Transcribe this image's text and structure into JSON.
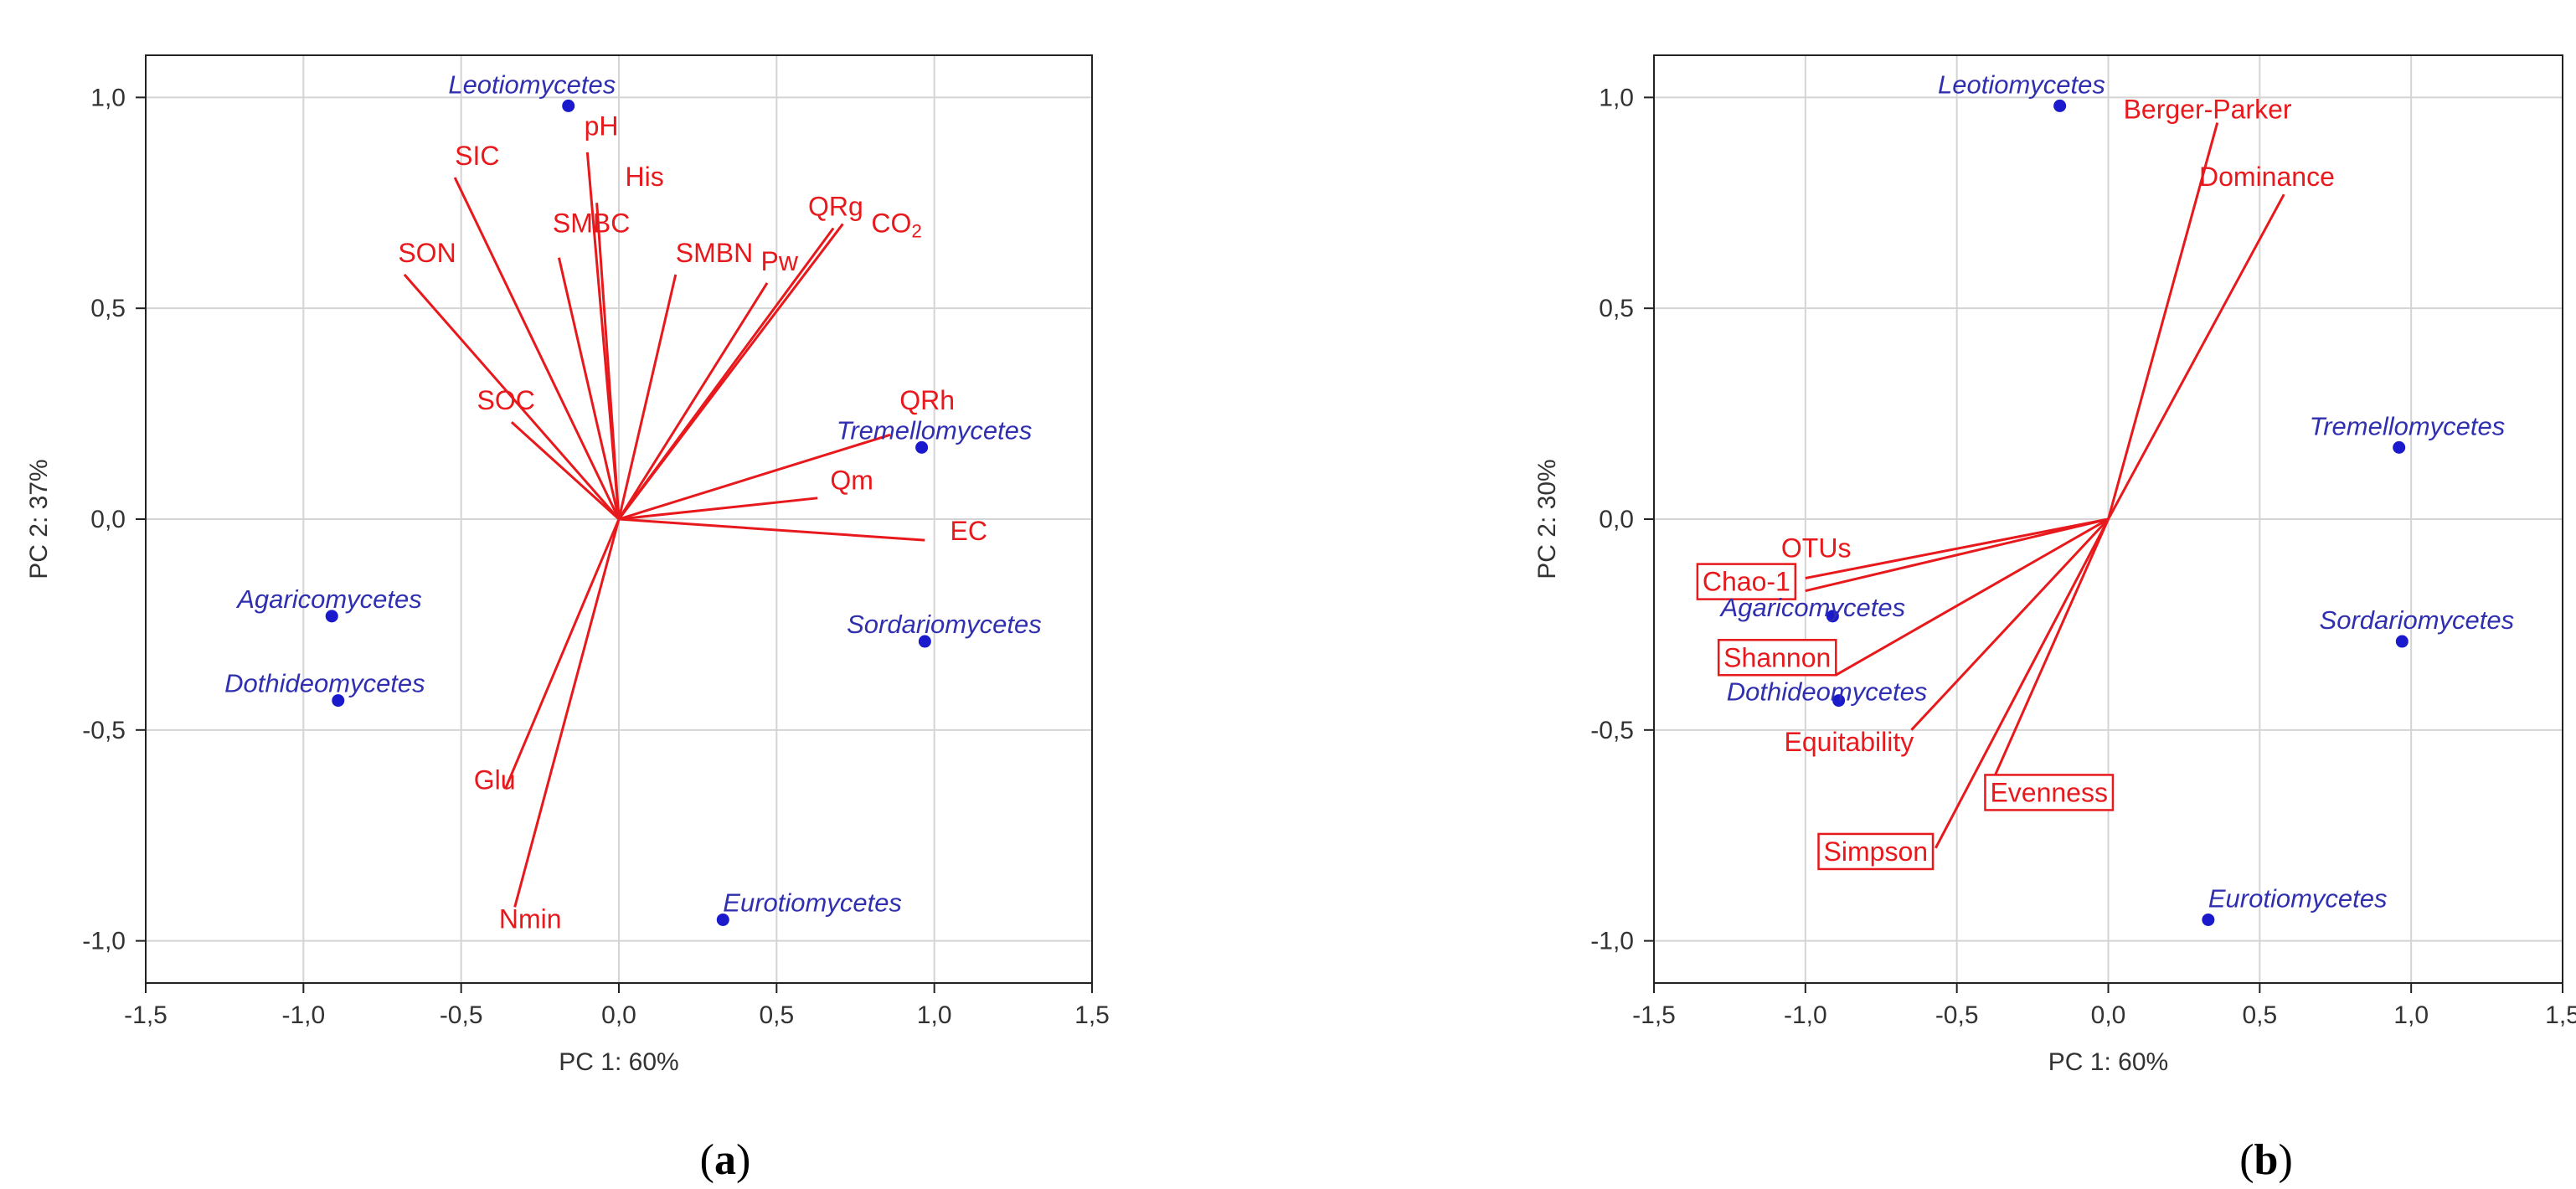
{
  "chart_data": [
    {
      "type": "scatter",
      "subtype": "pca-biplot",
      "panel_label": {
        "prefix": "(",
        "letter": "a",
        "suffix": ")"
      },
      "xlabel": "PC 1: 60%",
      "ylabel": "PC 2: 37%",
      "xlim": [
        -1.5,
        1.5
      ],
      "ylim": [
        -1.1,
        1.1
      ],
      "grid": true,
      "x_ticks": [
        -1.5,
        -1.0,
        -0.5,
        0.0,
        0.5,
        1.0,
        1.5
      ],
      "y_ticks": [
        -1.0,
        -0.5,
        0.0,
        0.5,
        1.0
      ],
      "x_tick_labels": [
        "-1,5",
        "-1,0",
        "-0,5",
        "0,0",
        "0,5",
        "1,0",
        "1,5"
      ],
      "y_tick_labels": [
        "-1,0",
        "-0,5",
        "0,0",
        "0,5",
        "1,0"
      ],
      "colors": {
        "points": "#1a1acc",
        "point_labels": "#2f2fb0",
        "vectors": "#e8191c",
        "grid": "#d4d4d4",
        "axes": "#222222"
      },
      "points": [
        {
          "label": "Leotiomycetes",
          "x": -0.16,
          "y": 0.98,
          "label_anchor": "end",
          "label_dx": 0.15,
          "label_dy": 0.03
        },
        {
          "label": "Tremellomycetes",
          "x": 0.96,
          "y": 0.17,
          "label_anchor": "end",
          "label_dx": 0.35,
          "label_dy": 0.02
        },
        {
          "label": "Sordariomycetes",
          "x": 0.97,
          "y": -0.29,
          "label_anchor": "end",
          "label_dx": 0.37,
          "label_dy": 0.02
        },
        {
          "label": "Agaricomycetes",
          "x": -0.91,
          "y": -0.23,
          "label_anchor": "start",
          "label_dx": -0.3,
          "label_dy": 0.02
        },
        {
          "label": "Dothideomycetes",
          "x": -0.89,
          "y": -0.43,
          "label_anchor": "start",
          "label_dx": -0.36,
          "label_dy": 0.02
        },
        {
          "label": "Eurotiomycetes",
          "x": 0.33,
          "y": -0.95,
          "label_anchor": "start",
          "label_dx": 0.0,
          "label_dy": 0.02
        }
      ],
      "vectors": [
        {
          "label": "pH",
          "x": -0.1,
          "y": 0.87,
          "lx": -0.11,
          "ly": 0.91,
          "boxed": false
        },
        {
          "label": "His",
          "x": -0.07,
          "y": 0.75,
          "lx": 0.02,
          "ly": 0.79,
          "boxed": false
        },
        {
          "label": "SIC",
          "x": -0.52,
          "y": 0.81,
          "lx": -0.52,
          "ly": 0.84,
          "boxed": false
        },
        {
          "label": "SMBC",
          "x": -0.19,
          "y": 0.62,
          "lx": -0.21,
          "ly": 0.68,
          "boxed": false
        },
        {
          "label": "SON",
          "x": -0.68,
          "y": 0.58,
          "lx": -0.7,
          "ly": 0.61,
          "boxed": false
        },
        {
          "label": "SMBN",
          "x": 0.18,
          "y": 0.58,
          "lx": 0.18,
          "ly": 0.61,
          "boxed": false
        },
        {
          "label": "QRg",
          "x": 0.68,
          "y": 0.69,
          "lx": 0.6,
          "ly": 0.72,
          "boxed": false
        },
        {
          "label": "CO2",
          "x": 0.71,
          "y": 0.7,
          "lx": 0.8,
          "ly": 0.68,
          "boxed": false
        },
        {
          "label": "Pw",
          "x": 0.47,
          "y": 0.56,
          "lx": 0.45,
          "ly": 0.59,
          "boxed": false
        },
        {
          "label": "SOC",
          "x": -0.34,
          "y": 0.23,
          "lx": -0.45,
          "ly": 0.26,
          "boxed": false
        },
        {
          "label": "QRh",
          "x": 0.86,
          "y": 0.2,
          "lx": 0.89,
          "ly": 0.26,
          "boxed": false
        },
        {
          "label": "Qm",
          "x": 0.63,
          "y": 0.05,
          "lx": 0.67,
          "ly": 0.07,
          "boxed": false
        },
        {
          "label": "EC",
          "x": 0.97,
          "y": -0.05,
          "lx": 1.05,
          "ly": -0.05,
          "boxed": false
        },
        {
          "label": "Glu",
          "x": -0.36,
          "y": -0.64,
          "lx": -0.46,
          "ly": -0.64,
          "boxed": false
        },
        {
          "label": "Nmin",
          "x": -0.33,
          "y": -0.92,
          "lx": -0.38,
          "ly": -0.97,
          "boxed": false
        }
      ]
    },
    {
      "type": "scatter",
      "subtype": "pca-biplot",
      "panel_label": {
        "prefix": "(",
        "letter": "b",
        "suffix": ")"
      },
      "xlabel": "PC 1: 60%",
      "ylabel": "PC 2: 30%",
      "xlim": [
        -1.5,
        1.5
      ],
      "ylim": [
        -1.1,
        1.1
      ],
      "grid": true,
      "x_ticks": [
        -1.5,
        -1.0,
        -0.5,
        0.0,
        0.5,
        1.0,
        1.5
      ],
      "y_ticks": [
        -1.0,
        -0.5,
        0.0,
        0.5,
        1.0
      ],
      "x_tick_labels": [
        "-1,5",
        "-1,0",
        "-0,5",
        "0,0",
        "0,5",
        "1,0",
        "1,5"
      ],
      "y_tick_labels": [
        "-1,0",
        "-0,5",
        "0,0",
        "0,5",
        "1,0"
      ],
      "colors": {
        "points": "#1a1acc",
        "point_labels": "#2f2fb0",
        "vectors": "#e8191c",
        "grid": "#d4d4d4",
        "axes": "#222222"
      },
      "points": [
        {
          "label": "Leotiomycetes",
          "x": -0.16,
          "y": 0.98,
          "label_anchor": "end",
          "label_dx": 0.15,
          "label_dy": 0.03
        },
        {
          "label": "Tremellomycetes",
          "x": 0.96,
          "y": 0.17,
          "label_anchor": "end",
          "label_dx": 0.35,
          "label_dy": 0.03
        },
        {
          "label": "Sordariomycetes",
          "x": 0.97,
          "y": -0.29,
          "label_anchor": "end",
          "label_dx": 0.37,
          "label_dy": 0.03
        },
        {
          "label": "Agaricomycetes",
          "x": -0.91,
          "y": -0.23,
          "label_anchor": "start",
          "label_dx": -0.37,
          "label_dy": 0.0
        },
        {
          "label": "Dothideomycetes",
          "x": -0.89,
          "y": -0.43,
          "label_anchor": "start",
          "label_dx": -0.37,
          "label_dy": 0.0
        },
        {
          "label": "Eurotiomycetes",
          "x": 0.33,
          "y": -0.95,
          "label_anchor": "start",
          "label_dx": 0.0,
          "label_dy": 0.03
        }
      ],
      "vectors": [
        {
          "label": "Berger-Parker",
          "x": 0.36,
          "y": 0.94,
          "lx": 0.05,
          "ly": 0.95,
          "boxed": false
        },
        {
          "label": "Dominance",
          "x": 0.58,
          "y": 0.77,
          "lx": 0.3,
          "ly": 0.79,
          "boxed": false
        },
        {
          "label": "OTUs",
          "x": -1.0,
          "y": -0.14,
          "lx": -1.08,
          "ly": -0.09,
          "boxed": false
        },
        {
          "label": "Chao-1",
          "x": -1.0,
          "y": -0.17,
          "lx": -1.34,
          "ly": -0.17,
          "boxed": true
        },
        {
          "label": "Shannon",
          "x": -0.9,
          "y": -0.37,
          "lx": -1.27,
          "ly": -0.35,
          "boxed": true
        },
        {
          "label": "Equitability",
          "x": -0.65,
          "y": -0.5,
          "lx": -1.07,
          "ly": -0.55,
          "boxed": false
        },
        {
          "label": "Evenness",
          "x": -0.4,
          "y": -0.65,
          "lx": -0.39,
          "ly": -0.67,
          "boxed": true
        },
        {
          "label": "Simpson",
          "x": -0.57,
          "y": -0.78,
          "lx": -0.94,
          "ly": -0.81,
          "boxed": true
        }
      ]
    }
  ]
}
